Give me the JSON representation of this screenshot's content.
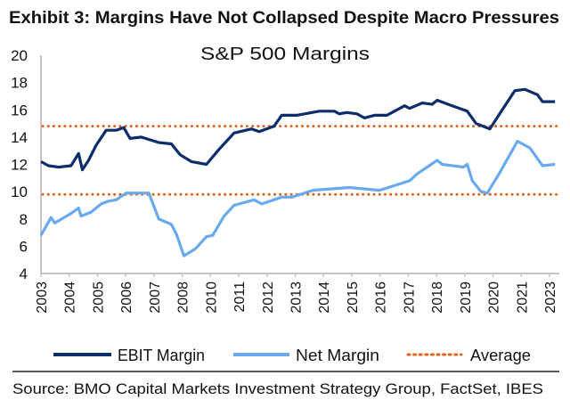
{
  "exhibit_title": "Exhibit 3: Margins Have Not Collapsed Despite Macro Pressures",
  "source": "Source: BMO Capital Markets Investment Strategy Group, FactSet, IBES",
  "chart_data": {
    "type": "line",
    "title": "S&P 500 Margins",
    "xlabel": "",
    "ylabel": "",
    "ylim": [
      4,
      20
    ],
    "yticks": [
      4,
      6,
      8,
      10,
      12,
      14,
      16,
      18,
      20
    ],
    "xlim": [
      2003,
      2023.6
    ],
    "xtick_labels": [
      "2003",
      "2004",
      "2005",
      "2006",
      "2007",
      "2008",
      "2010",
      "2011",
      "2012",
      "2013",
      "2014",
      "2015",
      "2016",
      "2017",
      "2018",
      "2019",
      "2020",
      "2021",
      "2023"
    ],
    "grid": false,
    "legend_position": "bottom",
    "colors": {
      "ebit": "#0b2d6b",
      "net": "#6aa9ee",
      "average": "#e0641c"
    },
    "series": [
      {
        "name": "EBIT Margin",
        "x": [
          2003.0,
          2003.3,
          2003.7,
          2004.2,
          2004.5,
          2004.65,
          2004.9,
          2005.2,
          2005.6,
          2006.0,
          2006.3,
          2006.55,
          2007.0,
          2007.7,
          2008.2,
          2008.55,
          2009.0,
          2009.6,
          2010.1,
          2010.7,
          2011.4,
          2011.7,
          2012.3,
          2012.6,
          2013.2,
          2014.1,
          2014.7,
          2014.9,
          2015.2,
          2015.6,
          2015.9,
          2016.3,
          2016.8,
          2017.5,
          2017.7,
          2018.2,
          2018.6,
          2018.8,
          2019.4,
          2020.0,
          2020.35,
          2020.9,
          2021.5,
          2021.9,
          2022.3,
          2022.8,
          2023.0,
          2023.5
        ],
        "values": [
          12.2,
          11.9,
          11.8,
          11.9,
          12.8,
          11.6,
          12.3,
          13.4,
          14.5,
          14.5,
          14.7,
          13.9,
          14.0,
          13.6,
          13.5,
          12.7,
          12.2,
          12.0,
          13.1,
          14.3,
          14.6,
          14.4,
          14.8,
          15.6,
          15.6,
          15.9,
          15.9,
          15.7,
          15.8,
          15.7,
          15.4,
          15.6,
          15.6,
          16.3,
          16.1,
          16.5,
          16.4,
          16.7,
          16.3,
          15.9,
          15.0,
          14.6,
          16.3,
          17.4,
          17.5,
          17.1,
          16.6,
          16.6
        ]
      },
      {
        "name": "Net Margin",
        "x": [
          2003.0,
          2003.4,
          2003.55,
          2004.2,
          2004.5,
          2004.6,
          2005.0,
          2005.4,
          2005.7,
          2006.0,
          2006.4,
          2007.3,
          2007.7,
          2008.2,
          2008.4,
          2008.7,
          2009.15,
          2009.6,
          2009.85,
          2010.3,
          2010.7,
          2011.5,
          2011.8,
          2012.6,
          2013.0,
          2013.85,
          2015.3,
          2016.5,
          2017.7,
          2018.0,
          2018.8,
          2019.0,
          2019.85,
          2020.0,
          2020.2,
          2020.55,
          2020.8,
          2021.3,
          2022.0,
          2022.5,
          2023.0,
          2023.5
        ],
        "values": [
          6.8,
          8.1,
          7.7,
          8.4,
          8.8,
          8.2,
          8.5,
          9.1,
          9.3,
          9.4,
          9.9,
          9.9,
          8.0,
          7.6,
          6.9,
          5.3,
          5.8,
          6.7,
          6.8,
          8.2,
          9.0,
          9.4,
          9.1,
          9.6,
          9.6,
          10.1,
          10.3,
          10.1,
          10.8,
          11.3,
          12.3,
          12.0,
          11.8,
          12.0,
          10.8,
          10.0,
          9.9,
          11.4,
          13.7,
          13.2,
          11.9,
          12.0
        ]
      },
      {
        "name": "Average",
        "values": [
          14.8,
          9.8
        ]
      }
    ]
  }
}
